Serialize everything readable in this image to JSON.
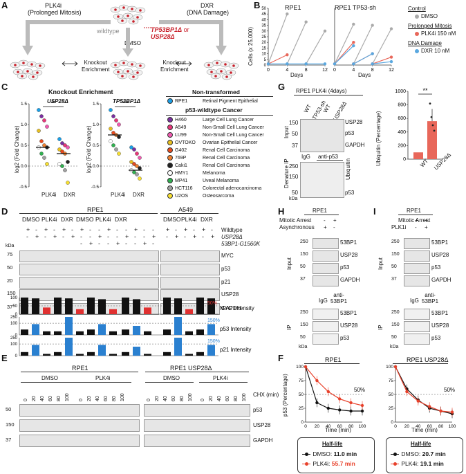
{
  "panels": {
    "A": "A",
    "B": "B",
    "C": "C",
    "D": "D",
    "E": "E",
    "F": "F",
    "G": "G",
    "H": "H",
    "I": "I"
  },
  "panelA": {
    "plk4i_title": "PLK4i",
    "plk4i_sub": "(Prolonged Mitosis)",
    "dxr_title": "DXR",
    "dxr_sub": "(DNA Damage)",
    "wildtype": "wildtype",
    "dmso": "DMSO",
    "ko_line1": "TP53BP1",
    "ko_or": " or",
    "ko_line2": "USP28",
    "ko_delta": "Δ",
    "ko_enrich_left": "Knockout\nEnrichment",
    "ko_enrich_right": "Knockout\nEnrichment"
  },
  "panelB": {
    "title_left": "RPE1",
    "title_right": "RPE1 TP53-sh",
    "ylabel": "Cells (x 25,000)",
    "xlabel": "Days",
    "legend": {
      "control": "Control",
      "dmso": "DMSO",
      "prolonged": "Prolonged Mitosis",
      "plk4i": "PLK4i 150 nM",
      "dna": "DNA Damage",
      "dxr": "DXR 10 nM"
    },
    "colors": {
      "dmso": "#aaaaaa",
      "plk4i": "#e8675a",
      "dxr": "#5aa8e0"
    }
  },
  "chart_data": [
    {
      "type": "line",
      "title": "RPE1",
      "xlabel": "Days",
      "ylabel": "Cells (x 25,000)",
      "ylim": [
        0,
        50
      ],
      "x": [
        0,
        4,
        8,
        12
      ],
      "yticks": [
        0,
        5,
        10,
        15,
        20,
        25,
        30,
        35,
        40,
        45,
        50
      ],
      "xticks": [
        0,
        4,
        8,
        12
      ],
      "series": [
        {
          "name": "DMSO",
          "segments": [
            [
              [
                0,
                1
              ],
              [
                4,
                45
              ]
            ],
            [
              [
                4,
                1
              ],
              [
                8,
                38
              ]
            ],
            [
              [
                8,
                1
              ],
              [
                12,
                30
              ]
            ]
          ]
        },
        {
          "name": "PLK4i 150 nM",
          "segments": [
            [
              [
                0,
                1
              ],
              [
                4,
                9
              ]
            ]
          ]
        },
        {
          "name": "DXR 10 nM",
          "segments": [
            [
              [
                0,
                1
              ],
              [
                4,
                1
              ],
              [
                8,
                1
              ],
              [
                12,
                1
              ]
            ]
          ]
        }
      ]
    },
    {
      "type": "line",
      "title": "RPE1 TP53-sh",
      "xlabel": "Days",
      "ylim": [
        0,
        50
      ],
      "x": [
        0,
        4,
        8,
        12
      ],
      "xticks": [
        0,
        4,
        8,
        12
      ],
      "series": [
        {
          "name": "DMSO",
          "segments": [
            [
              [
                0,
                1
              ],
              [
                4,
                36
              ]
            ],
            [
              [
                4,
                1
              ],
              [
                8,
                35
              ]
            ],
            [
              [
                8,
                1
              ],
              [
                12,
                32
              ]
            ]
          ]
        },
        {
          "name": "PLK4i 150 nM",
          "segments": [
            [
              [
                0,
                1
              ],
              [
                4,
                20
              ]
            ],
            [
              [
                4,
                1
              ],
              [
                8,
                10
              ]
            ],
            [
              [
                8,
                1
              ],
              [
                12,
                7
              ]
            ]
          ]
        },
        {
          "name": "DXR 10 nM",
          "segments": [
            [
              [
                0,
                1
              ],
              [
                4,
                17
              ]
            ],
            [
              [
                4,
                1
              ],
              [
                8,
                10
              ]
            ],
            [
              [
                8,
                1
              ],
              [
                12,
                3
              ]
            ]
          ]
        }
      ]
    },
    {
      "type": "scatter",
      "title": "USP28Δ",
      "ylabel": "log2 (Fold Change)",
      "ylim": [
        -0.5,
        1.5
      ],
      "yticks": [
        -0.5,
        0.0,
        0.5,
        1.0,
        1.5
      ],
      "categories": [
        "PLK4i",
        "DXR"
      ],
      "sig": "**",
      "points": {
        "PLK4i": [
          1.35,
          1.2,
          1.1,
          0.95,
          0.85,
          0.6,
          0.5,
          0.45,
          0.45,
          0.3,
          0.2,
          0.05
        ],
        "DXR": [
          0.65,
          0.55,
          0.5,
          0.45,
          0.4,
          0.35,
          0.3,
          0.1,
          0.05,
          0.0,
          -0.1,
          -0.4
        ]
      },
      "means": {
        "PLK4i": 0.45,
        "DXR": 0.3
      }
    },
    {
      "type": "scatter",
      "title": "TP53BP1Δ",
      "ylim": [
        -0.5,
        1.5
      ],
      "yticks": [
        -0.5,
        0.0,
        0.5,
        1.0,
        1.5
      ],
      "categories": [
        "PLK4i",
        "DXR"
      ],
      "sig": "***",
      "points": {
        "PLK4i": [
          1.35,
          1.2,
          1.1,
          1.0,
          0.9,
          0.8,
          0.75,
          0.7,
          0.6,
          0.5,
          0.4,
          0.3
        ],
        "DXR": [
          0.45,
          0.4,
          0.3,
          0.2,
          0.1,
          0.05,
          0.0,
          -0.05,
          -0.1,
          -0.15,
          -0.2,
          -0.3
        ]
      },
      "means": {
        "PLK4i": 0.75,
        "DXR": -0.1
      }
    },
    {
      "type": "bar",
      "title": "MYC Intensity",
      "reference": "50%",
      "ylim": [
        0,
        100
      ],
      "yticks": [
        0,
        50,
        100
      ]
    },
    {
      "type": "bar",
      "title": "p53 Intensity",
      "reference": "150%",
      "ylim": [
        0,
        250
      ],
      "yticks": [
        0,
        100,
        250
      ]
    },
    {
      "type": "bar",
      "title": "p21 Intensity",
      "reference": "150%",
      "ylim": [
        0,
        250
      ],
      "yticks": [
        0,
        100,
        250
      ]
    },
    {
      "type": "line",
      "title": "RPE1",
      "xlabel": "Time (min)",
      "ylabel": "p53 (Percentage)",
      "ylim": [
        0,
        100
      ],
      "x": [
        0,
        20,
        40,
        60,
        80,
        100
      ],
      "yticks": [
        0,
        25,
        50,
        75,
        100
      ],
      "xticks": [
        0,
        20,
        40,
        60,
        80,
        100
      ],
      "reference": "50%",
      "series": [
        {
          "name": "DMSO",
          "values": [
            100,
            35,
            25,
            22,
            20,
            20
          ]
        },
        {
          "name": "PLK4i",
          "values": [
            100,
            75,
            55,
            42,
            35,
            30
          ]
        }
      ]
    },
    {
      "type": "line",
      "title": "RPE1 USP28Δ",
      "xlabel": "Time (min)",
      "ylim": [
        0,
        100
      ],
      "x": [
        0,
        20,
        40,
        60,
        80,
        100
      ],
      "yticks": [
        0,
        25,
        50,
        75,
        100
      ],
      "xticks": [
        0,
        20,
        40,
        60,
        80,
        100
      ],
      "reference": "50%",
      "series": [
        {
          "name": "DMSO",
          "values": [
            100,
            60,
            40,
            25,
            20,
            15
          ]
        },
        {
          "name": "PLK4i",
          "values": [
            100,
            55,
            38,
            28,
            20,
            18
          ]
        }
      ]
    },
    {
      "type": "bar",
      "title": "",
      "ylabel": "Ubiquitin (Percentage)",
      "ylim": [
        0,
        1000
      ],
      "yticks": [
        0,
        200,
        400,
        600,
        800,
        1000
      ],
      "categories": [
        "WT",
        "USP28Δ"
      ],
      "values": [
        100,
        560
      ],
      "sig": "**"
    }
  ],
  "panelC": {
    "title": "Knockout Enrichment",
    "left_title": "USP28Δ",
    "right_title": "TP53BP1Δ",
    "ylabel": "log2 (Fold Change)",
    "xcat1": "PLK4i",
    "xcat2": "DXR",
    "sig_left": "**",
    "sig_right": "***",
    "legend_nt": "Non-transformed",
    "legend_p53": "p53-wildtype Cancer",
    "cells": [
      {
        "name": "RPE1",
        "desc": "Retinal Pigment Epithelial",
        "color": "#1aa0e8"
      },
      {
        "name": "H460",
        "desc": "Large Cell Lung Cancer",
        "color": "#7b2fa0"
      },
      {
        "name": "A549",
        "desc": "Non-Small Cell Lung Cancer",
        "color": "#e8367a"
      },
      {
        "name": "LU99",
        "desc": "Non-Small Cell Lung Cancer",
        "color": "#f05ab0"
      },
      {
        "name": "OVTOKO",
        "desc": "Ovarian Epithelial Cancer",
        "color": "#e8c020"
      },
      {
        "name": "G402",
        "desc": "Renal Cell Carcinoma",
        "color": "#e84a1c"
      },
      {
        "name": "769P",
        "desc": "Renal Cell Carcinoma",
        "color": "#f08030"
      },
      {
        "name": "Caki1",
        "desc": "Renal Cell Carcinoma",
        "color": "#222222"
      },
      {
        "name": "HMY1",
        "desc": "Melanoma",
        "color": "#ffffff"
      },
      {
        "name": "MP41",
        "desc": "Uveal Melanoma",
        "color": "#30b050"
      },
      {
        "name": "HCT116",
        "desc": "Colorectal adenocarcinoma",
        "color": "#a0a0a0"
      },
      {
        "name": "U2OS",
        "desc": "Osteosarcoma",
        "color": "#f8e030"
      }
    ]
  },
  "panelD": {
    "cell1": "RPE1",
    "cell2": "A549",
    "cond": [
      "DMSO",
      "PLK4i",
      "DXR"
    ],
    "rowlabels": [
      "Wildtype",
      "USP28Δ",
      "53BP1-G1560K"
    ],
    "kda": "kDa",
    "markers": [
      "75",
      "50",
      "50",
      "20",
      "150",
      "37"
    ],
    "proteins": [
      "MYC",
      "p53",
      "p21",
      "USP28",
      "GAPDH"
    ],
    "plus": "+",
    "minus": "-",
    "q_labels": [
      "MYC Intensity",
      "p53 Intensity",
      "p21 Intensity"
    ],
    "q_ticks": [
      [
        "0",
        "50",
        "100"
      ],
      [
        "0",
        "100",
        "250"
      ],
      [
        "0",
        "100",
        "250"
      ]
    ],
    "q_ref": [
      "50%",
      "150%",
      "150%"
    ]
  },
  "panelE": {
    "cell1": "RPE1",
    "cell2": "RPE1 USP28Δ",
    "cond": [
      "DMSO",
      "PLK4i",
      "DMSO",
      "PLK4i"
    ],
    "times": [
      "0",
      "20",
      "40",
      "60",
      "80",
      "100"
    ],
    "chx": "CHX (min)",
    "markers": [
      "50",
      "150",
      "37"
    ],
    "proteins": [
      "p53",
      "USP28",
      "GAPDH"
    ]
  },
  "panelF": {
    "title_left": "RPE1",
    "title_right": "RPE1 USP28Δ",
    "ylabel": "p53 (Percentage)",
    "xlabel": "Time (min)",
    "ref": "50%",
    "halflife": "Half-life",
    "dmso_label": "DMSO:",
    "plk4i_label": "PLK4i:",
    "left_dmso": "11.0 min",
    "left_plk4i": "55.7 min",
    "right_dmso": "20.7 min",
    "right_plk4i": "19.1 min",
    "colors": {
      "dmso": "#111111",
      "plk4i": "#e8402a"
    }
  },
  "panelG": {
    "title": "RPE1 PLK4i (4days)",
    "lanes": [
      "WT",
      "TP53-sh",
      "WT",
      "USP28Δ"
    ],
    "input": "Input",
    "denature": "Denature IP",
    "igg": "IgG",
    "anti": "anti-p53",
    "markers": [
      "150",
      "50",
      "37",
      "250",
      "150",
      "50"
    ],
    "proteins": [
      "USP28",
      "p53",
      "GAPDH",
      "Ubiquitin",
      "p53"
    ],
    "kda": "kDa",
    "bar_ylabel": "Ubiquitin (Percentage)",
    "bar_cats": [
      "WT",
      "USP28Δ"
    ],
    "sig": "**",
    "bar_color": "#e8675a"
  },
  "panelH": {
    "title": "RPE1",
    "row1": "Mitotic Arrest",
    "row2": "Asynchronous",
    "r1": [
      "-",
      "+"
    ],
    "r2": [
      "+",
      "-"
    ],
    "input": "Input",
    "ip": "IP",
    "igg": "IgG",
    "anti": "anti-\n53BP1",
    "markers_in": [
      "250",
      "150",
      "50",
      "37"
    ],
    "markers_ip": [
      "250",
      "150",
      "50"
    ],
    "proteins_in": [
      "53BP1",
      "USP28",
      "p53",
      "GAPDH"
    ],
    "proteins_ip": [
      "53BP1",
      "USP28",
      "p53"
    ],
    "kda": "kDa"
  },
  "panelI": {
    "title": "RPE1",
    "row1": "Mitotic Arrest",
    "row2": "PLK1i",
    "r1": [
      "+",
      "+"
    ],
    "r2": [
      "-",
      "+"
    ],
    "input": "Input",
    "ip": "IP",
    "igg": "IgG",
    "anti": "anti-\n53BP1",
    "markers_in": [
      "250",
      "150",
      "50",
      "37"
    ],
    "markers_ip": [
      "250",
      "150",
      "50"
    ],
    "proteins_in": [
      "53BP1",
      "USP28",
      "p53",
      "GAPDH"
    ],
    "proteins_ip": [
      "53BP1",
      "USP28",
      "p53"
    ],
    "kda": "kDa"
  }
}
